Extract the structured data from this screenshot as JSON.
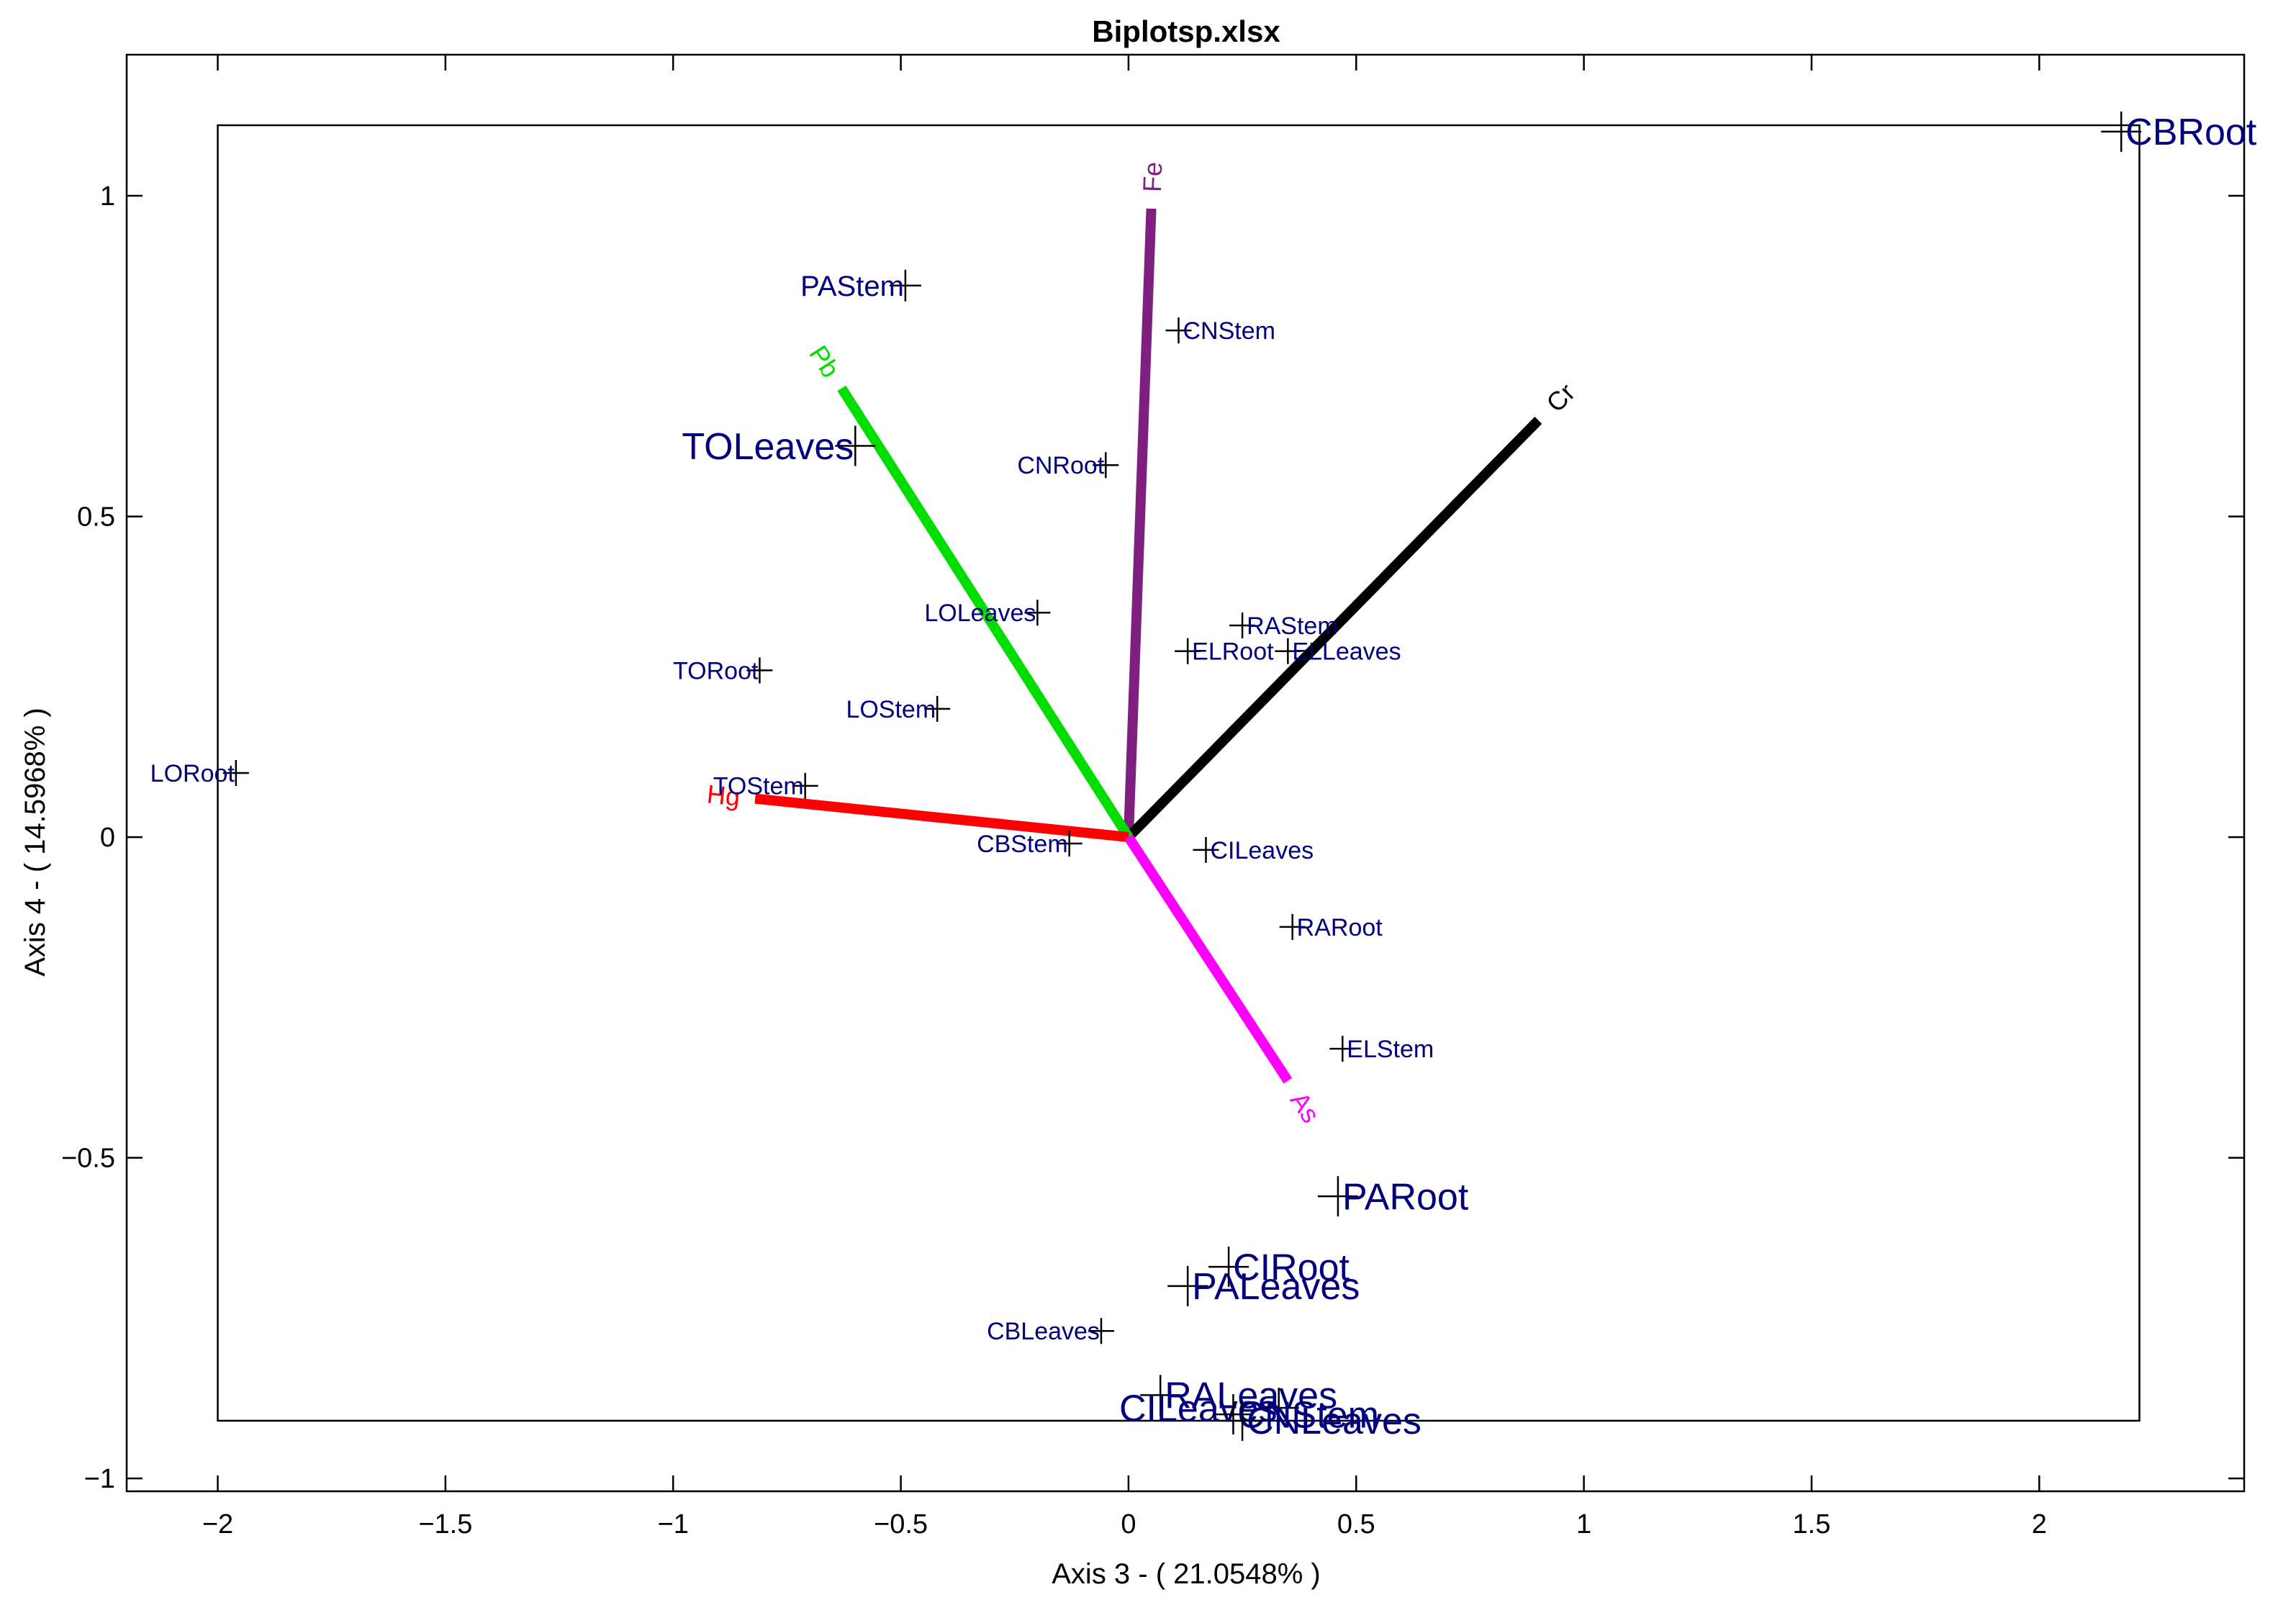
{
  "chart_data": {
    "type": "scatter",
    "title": "Biplotsp.xlsx",
    "xlabel": "Axis 3 - ( 21.0548% )",
    "ylabel": "Axis 4 - ( 14.5968% )",
    "xlim": [
      -2.2,
      2.45
    ],
    "ylim": [
      -1.02,
      1.22
    ],
    "xticks": [
      -2,
      -1.5,
      -1,
      -0.5,
      0,
      0.5,
      1,
      1.5,
      2
    ],
    "yticks": [
      -1,
      -0.5,
      0,
      0.5,
      1
    ],
    "xtick_labels": [
      "−2",
      "−1.5",
      "−1",
      "−0.5",
      "0",
      "0.5",
      "1",
      "1.5",
      "2"
    ],
    "ytick_labels": [
      "−1",
      "−0.5",
      "0",
      "0.5",
      "1"
    ],
    "grid": false,
    "inner_box": {
      "x": [
        -2.0,
        2.22
      ],
      "y": [
        -0.91,
        1.11
      ]
    },
    "vectors": [
      {
        "name": "Fe",
        "x": 0.05,
        "y": 0.98,
        "color": "#7f1f7f"
      },
      {
        "name": "Cr",
        "x": 0.9,
        "y": 0.65,
        "color": "#000000"
      },
      {
        "name": "Pb",
        "x": -0.63,
        "y": 0.7,
        "color": "#00dd00"
      },
      {
        "name": "Hg",
        "x": -0.82,
        "y": 0.06,
        "color": "#ff0000"
      },
      {
        "name": "As",
        "x": 0.35,
        "y": -0.38,
        "color": "#ff00ff"
      }
    ],
    "points": [
      {
        "label": "CBRoot",
        "x": 2.18,
        "y": 1.1,
        "size": "large",
        "anchor": "right"
      },
      {
        "label": "PAStem",
        "x": -0.49,
        "y": 0.86,
        "size": "medium",
        "anchor": "left"
      },
      {
        "label": "CNStem",
        "x": 0.11,
        "y": 0.79,
        "size": "small",
        "anchor": "right"
      },
      {
        "label": "TOLeaves",
        "x": -0.6,
        "y": 0.61,
        "size": "large",
        "anchor": "left"
      },
      {
        "label": "CNRoot",
        "x": -0.05,
        "y": 0.58,
        "size": "small",
        "anchor": "left"
      },
      {
        "label": "LOLeaves",
        "x": -0.2,
        "y": 0.35,
        "size": "small",
        "anchor": "left"
      },
      {
        "label": "RAStem",
        "x": 0.25,
        "y": 0.33,
        "size": "small",
        "anchor": "right"
      },
      {
        "label": "ELRoot",
        "x": 0.13,
        "y": 0.29,
        "size": "small",
        "anchor": "right"
      },
      {
        "label": "ELLeaves",
        "x": 0.35,
        "y": 0.29,
        "size": "small",
        "anchor": "right"
      },
      {
        "label": "TORoot",
        "x": -0.81,
        "y": 0.26,
        "size": "small",
        "anchor": "left"
      },
      {
        "label": "LOStem",
        "x": -0.42,
        "y": 0.2,
        "size": "small",
        "anchor": "left"
      },
      {
        "label": "LORoot",
        "x": -1.96,
        "y": 0.1,
        "size": "small",
        "anchor": "left"
      },
      {
        "label": "TOStem",
        "x": -0.71,
        "y": 0.08,
        "size": "small",
        "anchor": "left"
      },
      {
        "label": "CBStem",
        "x": -0.13,
        "y": -0.01,
        "size": "small",
        "anchor": "left"
      },
      {
        "label": "CILeaves",
        "x": 0.17,
        "y": -0.02,
        "size": "small",
        "anchor": "right"
      },
      {
        "label": "RARoot",
        "x": 0.36,
        "y": -0.14,
        "size": "small",
        "anchor": "right"
      },
      {
        "label": "ELStem",
        "x": 0.47,
        "y": -0.33,
        "size": "small",
        "anchor": "right"
      },
      {
        "label": "PARoot",
        "x": 0.46,
        "y": -0.56,
        "size": "large",
        "anchor": "right"
      },
      {
        "label": "CIRoot",
        "x": 0.22,
        "y": -0.67,
        "size": "large",
        "anchor": "right"
      },
      {
        "label": "PALeaves",
        "x": 0.13,
        "y": -0.7,
        "size": "large",
        "anchor": "right"
      },
      {
        "label": "CBLeaves",
        "x": -0.06,
        "y": -0.77,
        "size": "small",
        "anchor": "left"
      },
      {
        "label": "RALeaves",
        "x": 0.07,
        "y": -0.87,
        "size": "large",
        "anchor": "right"
      },
      {
        "label": "CILeaves",
        "x": 0.33,
        "y": -0.89,
        "size": "large",
        "anchor": "left"
      },
      {
        "label": "CNStem",
        "x": 0.23,
        "y": -0.9,
        "size": "large",
        "anchor": "right"
      },
      {
        "label": "CNLeaves",
        "x": 0.25,
        "y": -0.91,
        "size": "large",
        "anchor": "right"
      }
    ]
  }
}
